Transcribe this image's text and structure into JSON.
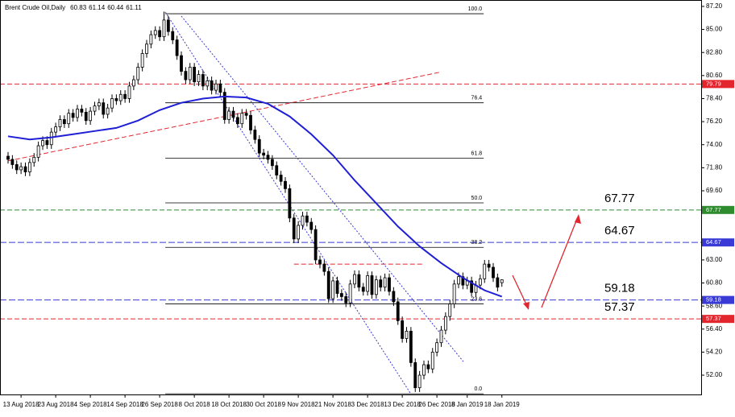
{
  "chart_data": {
    "type": "candlestick",
    "title": "Brent Crude Oil,Daily",
    "open": [
      72.9,
      72.6,
      72.1,
      71.6,
      71.9,
      71.4,
      72.3,
      72.8,
      73.9,
      74.4,
      74.0,
      75.2,
      75.7,
      76.4,
      76.0,
      77.0,
      76.6,
      77.4,
      77.1,
      76.3,
      77.2,
      77.7,
      78.0,
      76.9,
      77.5,
      78.4,
      78.2,
      78.8,
      78.4,
      79.6,
      80.2,
      81.4,
      82.7,
      83.6,
      84.5,
      84.9,
      84.3,
      85.9,
      84.8,
      84.0,
      82.5,
      81.0,
      80.2,
      81.4,
      80.0,
      80.7,
      79.6,
      80.1,
      79.2,
      79.8,
      79.0,
      76.4,
      77.2,
      76.6,
      76.0,
      77.0,
      76.8,
      75.4,
      74.5,
      73.2,
      73.0,
      72.6,
      72.0,
      71.1,
      70.5,
      69.8,
      67.0,
      65.0,
      66.3,
      67.2,
      66.6,
      65.9,
      63.0,
      62.6,
      61.9,
      59.3,
      61.0,
      59.8,
      59.5,
      58.9,
      60.7,
      61.6,
      60.4,
      60.0,
      61.5,
      59.7,
      61.1,
      60.4,
      61.3,
      60.0,
      59.0,
      57.2,
      55.5,
      56.2,
      53.2,
      50.8,
      52.0,
      53.0,
      52.6,
      54.2,
      55.1,
      56.3,
      57.6,
      58.8,
      60.7,
      61.4,
      60.6,
      61.0,
      59.9,
      60.6,
      61.2,
      62.6,
      62.3,
      61.3,
      60.83
    ],
    "high": [
      73.3,
      73.0,
      72.5,
      72.3,
      72.3,
      72.7,
      73.2,
      74.3,
      74.8,
      74.8,
      75.6,
      76.1,
      76.8,
      76.8,
      77.4,
      77.4,
      77.8,
      77.8,
      77.5,
      77.6,
      78.1,
      78.4,
      78.4,
      77.9,
      78.8,
      78.8,
      79.2,
      79.2,
      80.0,
      80.6,
      81.8,
      83.1,
      84.0,
      84.9,
      85.3,
      85.3,
      86.7,
      86.3,
      85.2,
      84.4,
      82.9,
      81.4,
      81.8,
      81.8,
      81.1,
      81.1,
      80.5,
      80.5,
      80.2,
      80.2,
      79.4,
      77.6,
      77.6,
      77.0,
      77.4,
      77.4,
      77.2,
      75.8,
      74.9,
      73.6,
      73.4,
      73.0,
      72.4,
      71.5,
      70.9,
      70.2,
      67.4,
      66.7,
      67.6,
      67.6,
      67.0,
      66.3,
      63.4,
      63.0,
      62.3,
      61.4,
      61.4,
      60.2,
      59.9,
      61.1,
      62.0,
      62.0,
      60.8,
      61.9,
      61.9,
      61.5,
      61.5,
      61.7,
      61.7,
      60.4,
      59.4,
      57.6,
      56.6,
      56.6,
      53.6,
      52.4,
      53.4,
      53.4,
      54.6,
      55.5,
      56.7,
      58.0,
      59.2,
      61.1,
      61.8,
      61.8,
      61.4,
      61.4,
      61.0,
      61.6,
      63.0,
      63.0,
      62.7,
      61.7,
      61.14
    ],
    "low": [
      72.2,
      71.7,
      71.2,
      71.2,
      71.0,
      71.0,
      71.9,
      72.4,
      73.5,
      73.6,
      73.6,
      74.8,
      75.3,
      75.6,
      75.6,
      76.2,
      76.2,
      76.7,
      75.9,
      75.9,
      76.8,
      77.3,
      76.5,
      76.5,
      77.1,
      77.8,
      77.8,
      78.0,
      78.0,
      79.2,
      79.8,
      81.0,
      82.3,
      83.2,
      84.1,
      83.9,
      83.9,
      84.4,
      83.6,
      82.1,
      80.6,
      79.8,
      79.8,
      79.6,
      79.6,
      79.2,
      79.2,
      78.8,
      78.8,
      78.6,
      76.0,
      76.0,
      76.2,
      75.6,
      75.6,
      76.4,
      75.0,
      74.1,
      72.8,
      72.6,
      72.2,
      71.6,
      70.7,
      70.1,
      69.4,
      66.6,
      64.6,
      64.6,
      65.9,
      66.2,
      65.5,
      62.6,
      62.2,
      61.5,
      58.9,
      58.9,
      59.4,
      59.1,
      58.5,
      58.5,
      60.3,
      60.0,
      59.6,
      59.6,
      59.3,
      59.3,
      60.0,
      60.0,
      59.6,
      58.6,
      56.8,
      55.1,
      55.1,
      52.8,
      50.4,
      50.4,
      51.6,
      52.2,
      52.2,
      53.8,
      54.7,
      55.9,
      57.2,
      58.4,
      60.3,
      60.2,
      60.2,
      59.5,
      59.5,
      60.2,
      60.8,
      61.9,
      60.9,
      60.0,
      60.44
    ],
    "close": [
      72.6,
      72.1,
      71.6,
      71.9,
      71.4,
      72.3,
      72.8,
      73.9,
      74.4,
      74.0,
      75.2,
      75.7,
      76.4,
      76.0,
      77.0,
      76.6,
      77.4,
      77.1,
      76.3,
      77.2,
      77.7,
      78.0,
      76.9,
      77.5,
      78.4,
      78.2,
      78.8,
      78.4,
      79.6,
      80.2,
      81.4,
      82.7,
      83.6,
      84.5,
      84.9,
      84.3,
      85.9,
      84.8,
      84.0,
      82.5,
      81.0,
      80.2,
      81.4,
      80.0,
      80.7,
      79.6,
      80.1,
      79.2,
      79.8,
      79.0,
      76.4,
      77.2,
      76.6,
      76.0,
      77.0,
      76.8,
      75.4,
      74.5,
      73.2,
      73.0,
      72.6,
      72.0,
      71.1,
      70.5,
      69.8,
      67.0,
      65.0,
      66.3,
      67.2,
      66.6,
      65.9,
      63.0,
      62.6,
      61.9,
      59.3,
      61.0,
      59.8,
      59.5,
      58.9,
      60.7,
      61.6,
      60.4,
      60.0,
      61.5,
      59.7,
      61.1,
      60.4,
      61.3,
      60.0,
      59.0,
      57.2,
      55.5,
      56.2,
      53.2,
      50.8,
      52.0,
      53.0,
      52.6,
      54.2,
      55.1,
      56.3,
      57.6,
      58.8,
      60.7,
      61.4,
      60.6,
      61.0,
      59.9,
      60.6,
      61.2,
      62.6,
      62.3,
      61.3,
      60.4,
      61.11
    ],
    "up_color": "#ffffff",
    "down_color": "#000000",
    "xlim": [
      -1.86,
      160
    ],
    "ylim": [
      50.16,
      87.81
    ],
    "xticks": [
      {
        "value": 3,
        "label": "13 Aug 2018"
      },
      {
        "value": 11,
        "label": "23 Aug 2018"
      },
      {
        "value": 19,
        "label": "4 Sep 2018"
      },
      {
        "value": 27,
        "label": "14 Sep 2018"
      },
      {
        "value": 35,
        "label": "26 Sep 2018"
      },
      {
        "value": 43,
        "label": "8 Oct 2018"
      },
      {
        "value": 51,
        "label": "18 Oct 2018"
      },
      {
        "value": 59,
        "label": "30 Oct 2018"
      },
      {
        "value": 67,
        "label": "9 Nov 2018"
      },
      {
        "value": 75,
        "label": "21 Nov 2018"
      },
      {
        "value": 83,
        "label": "3 Dec 2018"
      },
      {
        "value": 91,
        "label": "13 Dec 2018"
      },
      {
        "value": 99,
        "label": "26 Dec 2018"
      },
      {
        "value": 106,
        "label": "8 Jan 2019"
      },
      {
        "value": 114,
        "label": "18 Jan 2019"
      }
    ],
    "yticks": [
      {
        "value": 87.2,
        "label": "87.20"
      },
      {
        "value": 85,
        "label": "85.00"
      },
      {
        "value": 82.8,
        "label": "82.80"
      },
      {
        "value": 80.6,
        "label": "80.60"
      },
      {
        "value": 78.4,
        "label": "78.40"
      },
      {
        "value": 76.2,
        "label": "76.20"
      },
      {
        "value": 74,
        "label": "74.00"
      },
      {
        "value": 71.8,
        "label": "71.80"
      },
      {
        "value": 69.6,
        "label": "69.60"
      },
      {
        "value": 63,
        "label": "63.00"
      },
      {
        "value": 60.8,
        "label": "60.80"
      },
      {
        "value": 58.6,
        "label": "58.60"
      },
      {
        "value": 56.4,
        "label": "56.40"
      },
      {
        "value": 54.2,
        "label": "54.20"
      },
      {
        "value": 52,
        "label": "52.00"
      }
    ],
    "moving_average": {
      "color": "#1f1fd6",
      "x": [
        0,
        5,
        10,
        15,
        20,
        25,
        30,
        35,
        40,
        45,
        50,
        55,
        60,
        65,
        70,
        75,
        80,
        85,
        90,
        95,
        100,
        105,
        110,
        114
      ],
      "values": [
        74.8,
        74.5,
        74.7,
        75.0,
        75.3,
        75.6,
        76.3,
        77.3,
        78.0,
        78.4,
        78.6,
        78.5,
        77.9,
        76.7,
        75.0,
        73.0,
        70.6,
        68.4,
        66.2,
        64.3,
        62.7,
        61.3,
        60.1,
        59.5
      ]
    },
    "levels": [
      {
        "value": 79.79,
        "color": "#e3262e",
        "callout": false
      },
      {
        "value": 67.77,
        "color": "#2e8b2e",
        "callout": true
      },
      {
        "value": 64.67,
        "color": "#3a3ad6",
        "callout": true
      },
      {
        "value": 59.18,
        "color": "#3a3ad6",
        "callout": true
      },
      {
        "value": 57.37,
        "color": "#e3262e",
        "callout": true
      }
    ],
    "fibonacci": {
      "x": [
        36.3,
        109.8
      ],
      "color": "#000000",
      "levels": [
        {
          "label": "100.0",
          "value": 86.5
        },
        {
          "label": "76.4",
          "value": 78.0
        },
        {
          "label": "61.8",
          "value": 72.7
        },
        {
          "label": "50.0",
          "value": 68.45
        },
        {
          "label": "38.2",
          "value": 64.2
        },
        {
          "label": "23.6",
          "value": 58.8
        },
        {
          "label": "0.0",
          "value": 50.23
        }
      ]
    },
    "trend_lines": [
      {
        "color": "#e3262e",
        "style": "dashed",
        "x": [
          0,
          99.5
        ],
        "values": [
          72.45,
          80.9
        ]
      },
      {
        "color": "#e3262e",
        "style": "dashed",
        "x": [
          66,
          96
        ],
        "values": [
          62.6,
          62.6
        ]
      },
      {
        "color": "#3a3ad6",
        "style": "dotted",
        "x": [
          36.3,
          93
        ],
        "values": [
          86.66,
          50.2
        ]
      },
      {
        "color": "#3a3ad6",
        "style": "dotted",
        "x": [
          40,
          105.1
        ],
        "values": [
          86.28,
          53.3
        ]
      }
    ]
  }
}
